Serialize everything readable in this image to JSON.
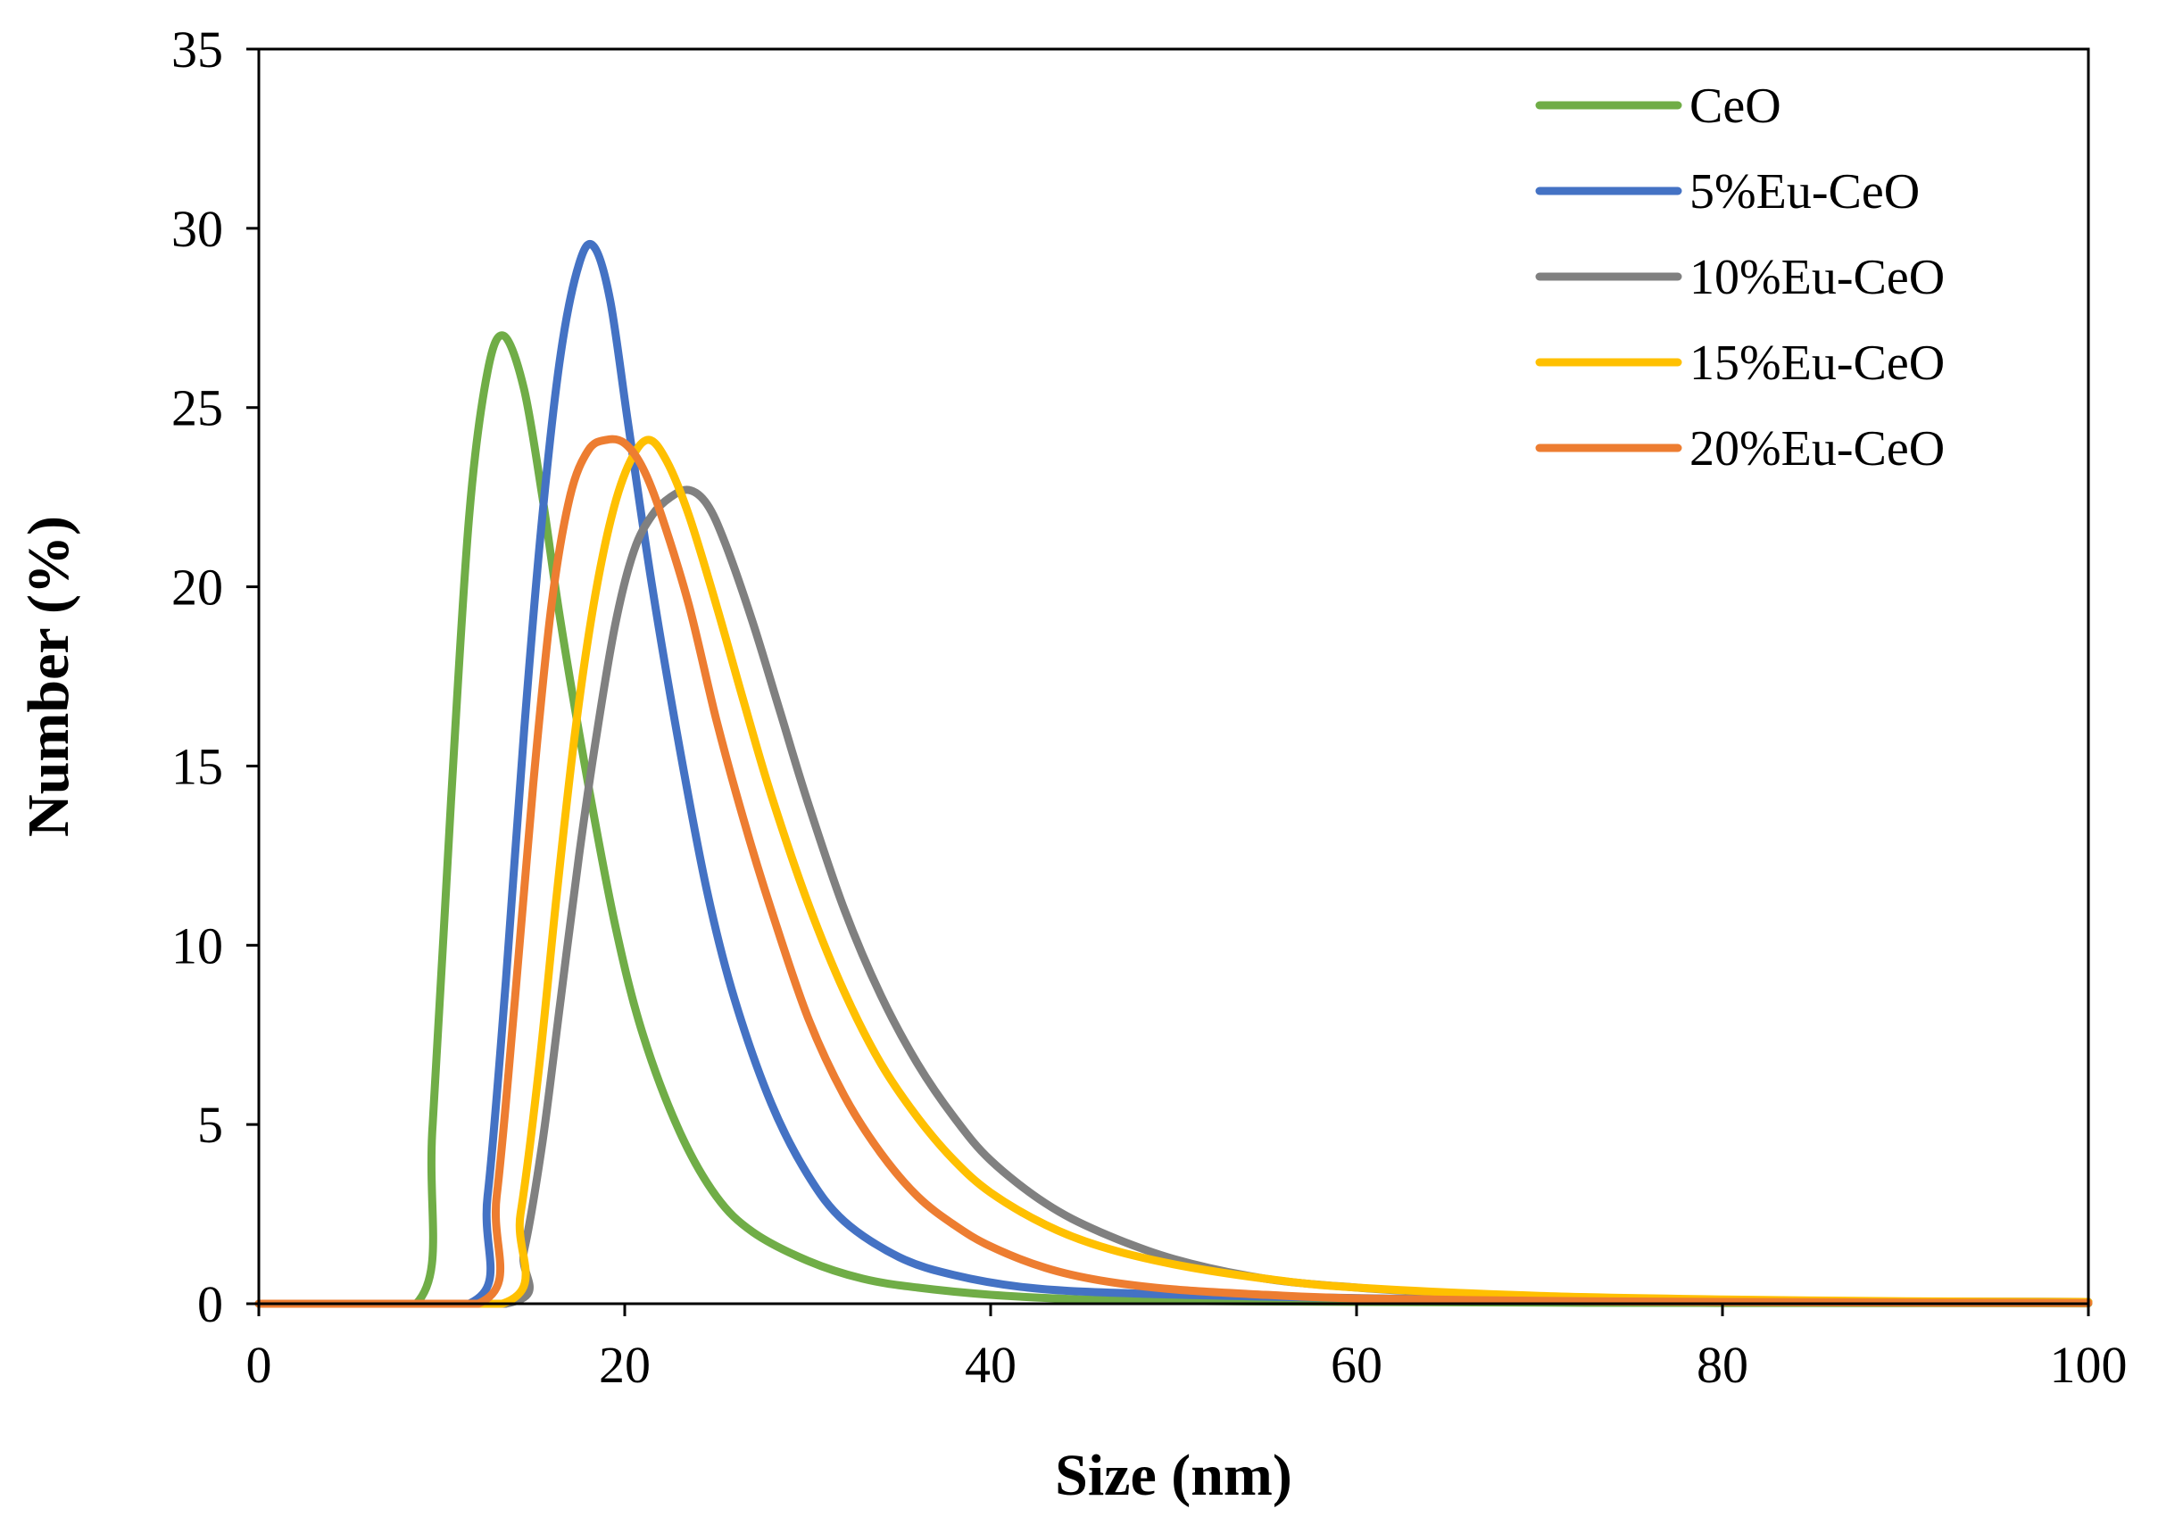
{
  "chart_data": {
    "type": "line",
    "title": "",
    "xlabel": "Size (nm)",
    "ylabel": "Number (%)",
    "xlim": [
      0,
      100
    ],
    "ylim": [
      0,
      35
    ],
    "xticks": [
      0,
      20,
      40,
      60,
      80,
      100
    ],
    "yticks": [
      0,
      5,
      10,
      15,
      20,
      25,
      30,
      35
    ],
    "grid": false,
    "legend_position": "top-right",
    "series": [
      {
        "name": "CeO",
        "color": "#70AD47",
        "x": [
          0,
          8.6,
          9.5,
          10.5,
          11.5,
          12.5,
          13.4,
          14.5,
          15.5,
          16.5,
          18,
          19.5,
          21,
          23,
          25,
          27,
          30,
          33,
          36,
          40,
          45,
          50,
          60,
          70,
          80,
          100
        ],
        "y": [
          0,
          0,
          5,
          14,
          22,
          26,
          27,
          25.5,
          22.5,
          19,
          14.5,
          10.5,
          7.5,
          4.8,
          3,
          2,
          1.2,
          0.7,
          0.45,
          0.25,
          0.12,
          0.08,
          0.05,
          0.03,
          0.02,
          0.01
        ]
      },
      {
        "name": "5%Eu-CeO",
        "color": "#4472C4",
        "x": [
          0,
          11.5,
          12.5,
          13.5,
          14.5,
          15.5,
          16.5,
          17.5,
          18.3,
          19.2,
          20.2,
          21.5,
          23,
          24.5,
          26,
          28,
          30,
          32,
          35,
          38,
          42,
          47,
          55,
          65,
          80,
          100
        ],
        "y": [
          0,
          0,
          3,
          9,
          16,
          22,
          26.5,
          29,
          29.5,
          28,
          24.5,
          20,
          15.5,
          11.5,
          8.5,
          5.6,
          3.6,
          2.3,
          1.3,
          0.8,
          0.45,
          0.3,
          0.2,
          0.12,
          0.07,
          0.05
        ]
      },
      {
        "name": "10%Eu-CeO",
        "color": "#808080",
        "x": [
          0,
          13.5,
          14.5,
          15.5,
          16.5,
          17.5,
          18.5,
          19.5,
          20.5,
          21.5,
          22.5,
          23.5,
          24.5,
          25.5,
          27,
          28.5,
          30,
          32,
          34,
          36,
          38,
          40,
          43,
          46,
          50,
          55,
          60,
          65,
          70,
          80,
          90,
          100
        ],
        "y": [
          0,
          0,
          1.5,
          4.5,
          8.5,
          12.5,
          16,
          19,
          21,
          22,
          22.5,
          22.7,
          22.3,
          21.2,
          19,
          16.5,
          14,
          11,
          8.6,
          6.7,
          5.2,
          4,
          2.8,
          2,
          1.25,
          0.7,
          0.45,
          0.3,
          0.2,
          0.1,
          0.06,
          0.05
        ]
      },
      {
        "name": "15%Eu-CeO",
        "color": "#FFC000",
        "x": [
          0,
          13.3,
          14.3,
          15.3,
          16.3,
          17.3,
          18.3,
          19.3,
          20.3,
          21.3,
          22.3,
          23.5,
          25,
          26.5,
          28,
          30,
          32,
          34,
          36,
          38,
          40,
          43,
          46,
          50,
          55,
          60,
          70,
          80,
          90,
          100
        ],
        "y": [
          0,
          0,
          2.5,
          6.5,
          11.5,
          16,
          19.5,
          22,
          23.5,
          24.1,
          23.5,
          22,
          19.5,
          16.8,
          14.2,
          11.2,
          8.7,
          6.7,
          5.2,
          4,
          3.1,
          2.2,
          1.6,
          1.1,
          0.7,
          0.45,
          0.22,
          0.12,
          0.07,
          0.05
        ]
      },
      {
        "name": "20%Eu-CeO",
        "color": "#ED7D31",
        "x": [
          0,
          12,
          13,
          14,
          15,
          16,
          17,
          18,
          19,
          20,
          21,
          22,
          23.5,
          25,
          26.5,
          28,
          30,
          32,
          34,
          36,
          38,
          40,
          43,
          46,
          50,
          55,
          60,
          70,
          80,
          90,
          100
        ],
        "y": [
          0,
          0,
          3,
          8.5,
          14.5,
          19.5,
          22.5,
          23.8,
          24.1,
          24,
          23.3,
          22,
          19.5,
          16.3,
          13.5,
          11,
          8,
          5.8,
          4.2,
          3,
          2.2,
          1.6,
          1,
          0.65,
          0.4,
          0.25,
          0.15,
          0.08,
          0.05,
          0.03,
          0.02
        ]
      }
    ]
  }
}
